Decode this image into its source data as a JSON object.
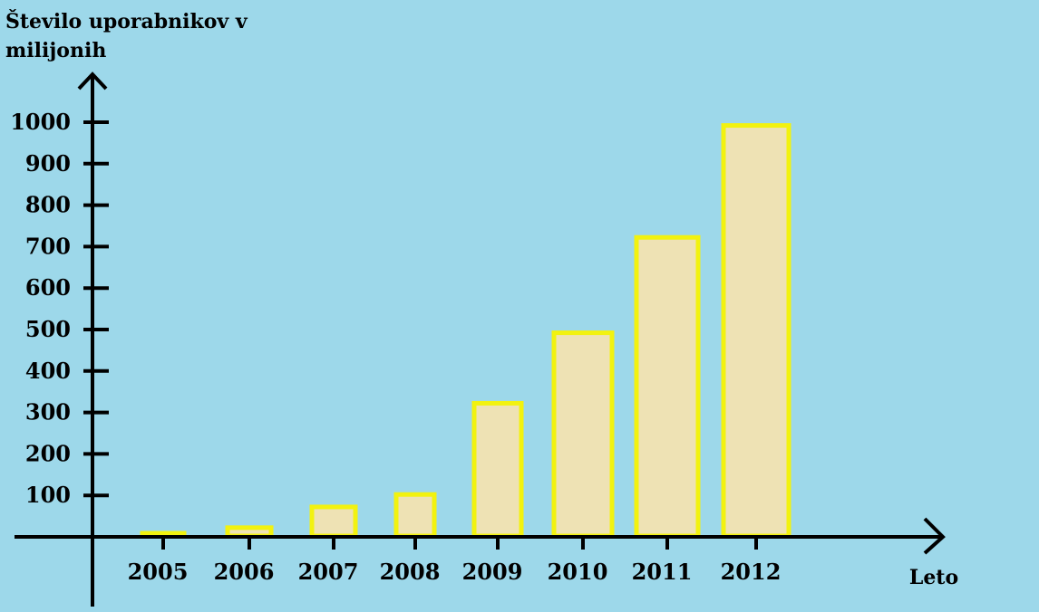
{
  "chart_data": {
    "type": "bar",
    "title": "",
    "ylabel": "Število uporabnikov v milijonih",
    "xlabel": "Leto",
    "categories": [
      "2005",
      "2006",
      "2007",
      "2008",
      "2009",
      "2010",
      "2011",
      "2012"
    ],
    "values": [
      5,
      20,
      70,
      100,
      320,
      490,
      720,
      990
    ],
    "yticks": [
      100,
      200,
      300,
      400,
      500,
      600,
      700,
      800,
      900,
      1000
    ],
    "ylim": [
      0,
      1100
    ],
    "grid": false,
    "legend": "none",
    "colors": {
      "background": "#9dd8ea",
      "bar_fill": "#eee2b4",
      "bar_stroke": "#f2f20f",
      "axis": "#000000"
    }
  }
}
